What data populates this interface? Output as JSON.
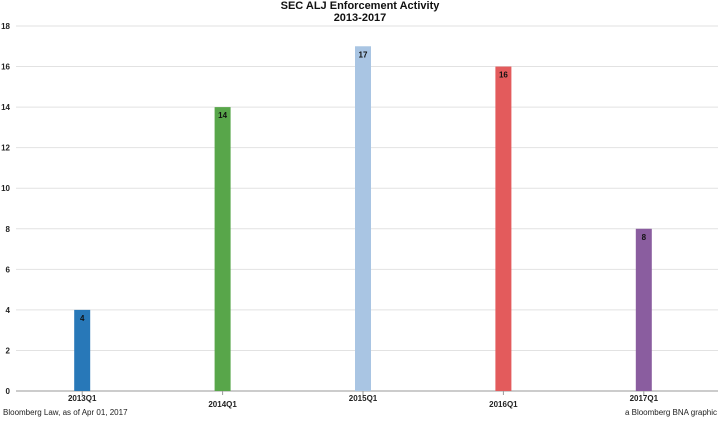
{
  "chart_data": {
    "type": "bar",
    "title": "SEC ALJ Enforcement Activity",
    "subtitle": "2013-2017",
    "categories": [
      "2013Q1",
      "2014Q1",
      "2015Q1",
      "2016Q1",
      "2017Q1"
    ],
    "values": [
      4,
      14,
      17,
      16,
      8
    ],
    "data_labels": [
      "4",
      "14",
      "17",
      "16",
      "8"
    ],
    "colors": [
      "#2878b8",
      "#58a64a",
      "#a9c5e3",
      "#e35b5c",
      "#8a5d9f"
    ],
    "ylim": [
      0,
      18
    ],
    "yticks": [
      0,
      2,
      4,
      6,
      8,
      10,
      12,
      14,
      16,
      18
    ],
    "xlabel": "",
    "ylabel": "",
    "grid": true,
    "legend": "none"
  },
  "footer": {
    "source": "Bloomberg Law, as of Apr 01, 2017",
    "credit": "a Bloomberg BNA graphic"
  }
}
